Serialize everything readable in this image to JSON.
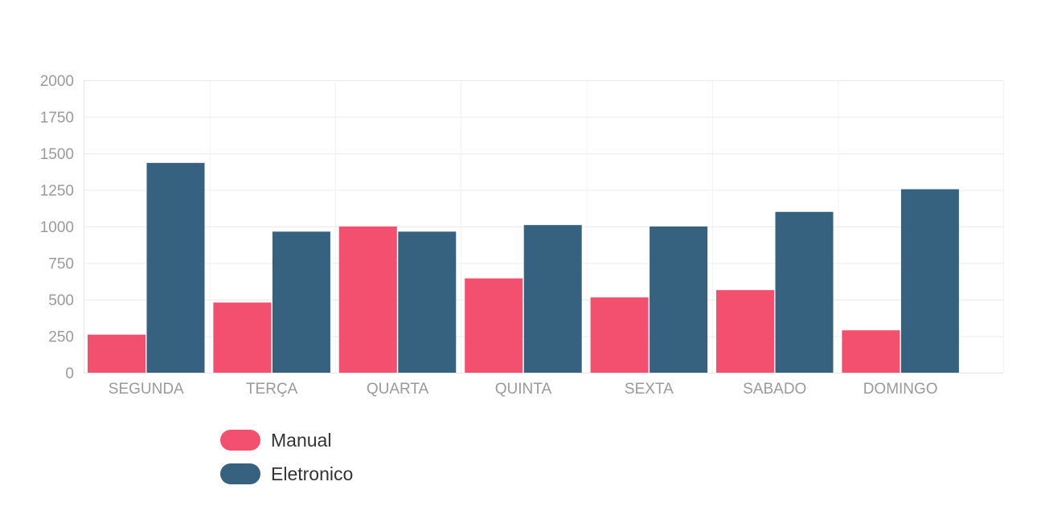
{
  "chart_data": {
    "type": "bar",
    "categories": [
      "SEGUNDA",
      "TERÇA",
      "QUARTA",
      "QUINTA",
      "SEXTA",
      "SABADO",
      "DOMINGO"
    ],
    "series": [
      {
        "name": "Manual",
        "color": "#f2506e",
        "values": [
          260,
          480,
          1000,
          645,
          515,
          565,
          290
        ]
      },
      {
        "name": "Eletronico",
        "color": "#36627f",
        "values": [
          1435,
          965,
          965,
          1010,
          1000,
          1100,
          1255
        ]
      }
    ],
    "yticks": [
      "0",
      "250",
      "500",
      "750",
      "1000",
      "1250",
      "1500",
      "1750",
      "2000"
    ],
    "ylim": [
      0,
      2000
    ],
    "grid": true,
    "legend": "bottom-left",
    "title": "",
    "xlabel": "",
    "ylabel": ""
  }
}
